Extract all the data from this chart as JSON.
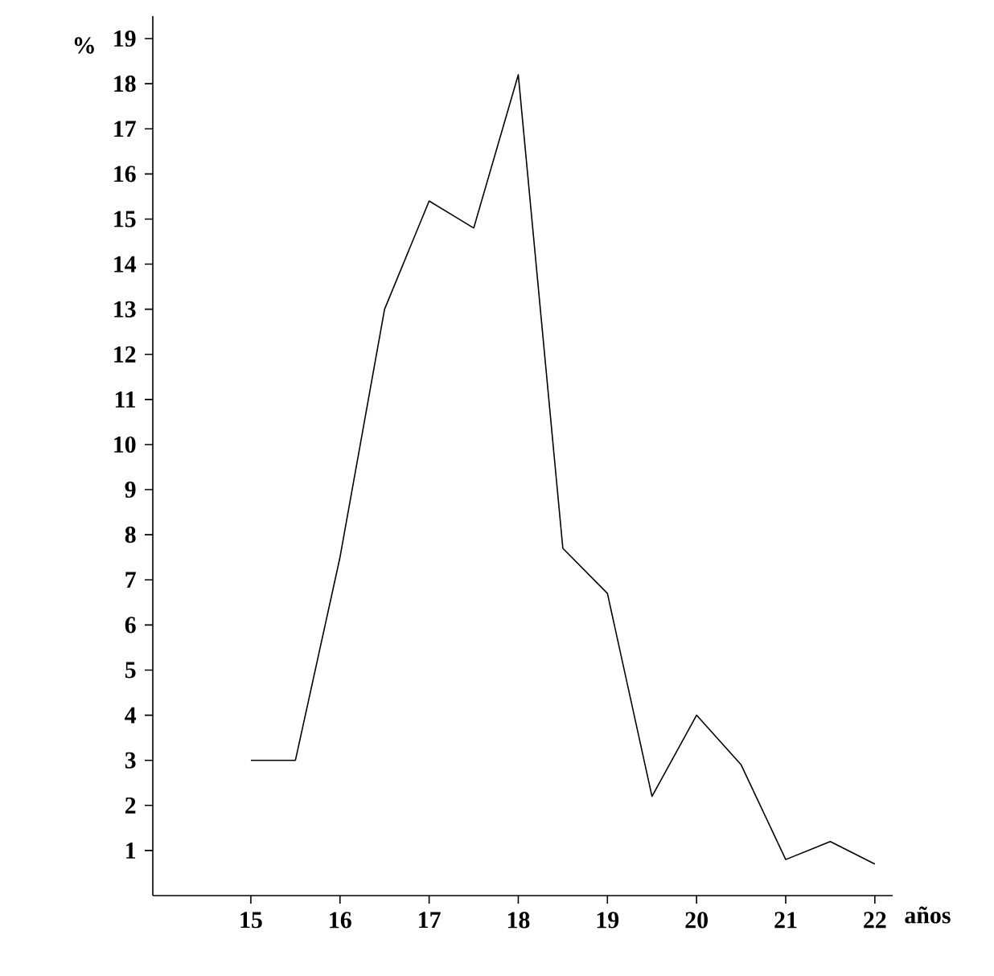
{
  "chart_data": {
    "type": "line",
    "xlabel": "años",
    "ylabel": "%",
    "x": [
      15,
      15.5,
      16,
      16.5,
      17,
      17.5,
      18,
      18.5,
      19,
      19.5,
      20,
      20.5,
      21,
      21.5,
      22
    ],
    "values": [
      3,
      3,
      7.5,
      13,
      15.4,
      14.8,
      18.2,
      7.7,
      6.7,
      2.2,
      4,
      2.9,
      0.8,
      1.2,
      0.7
    ],
    "color": "#000000",
    "xlim": [
      13.9,
      22.2
    ],
    "ylim": [
      0,
      19.5
    ],
    "xticks": [
      15,
      16,
      17,
      18,
      19,
      20,
      21,
      22
    ],
    "yticks": [
      1,
      2,
      3,
      4,
      5,
      6,
      7,
      8,
      9,
      10,
      11,
      12,
      13,
      14,
      15,
      16,
      17,
      18,
      19
    ],
    "grid": false,
    "marker": "none",
    "line_style": "solid"
  }
}
